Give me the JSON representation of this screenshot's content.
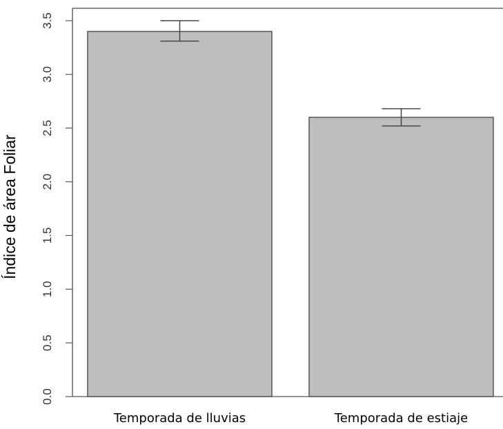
{
  "chart_data": {
    "type": "bar",
    "title": "",
    "xlabel": "",
    "ylabel": "Índice de área Foliar",
    "categories": [
      "Temporada de lluvias",
      "Temporada de estiaje"
    ],
    "values": [
      3.4,
      2.6
    ],
    "error_bars": [
      {
        "low": 3.31,
        "high": 3.5
      },
      {
        "low": 2.52,
        "high": 2.68
      }
    ],
    "ylim": [
      0,
      3.5
    ],
    "yticks": [
      "0.0",
      "0.5",
      "1.0",
      "1.5",
      "2.0",
      "2.5",
      "3.0",
      "3.5"
    ],
    "grid": false,
    "bar_color": "#bebebe",
    "bar_edge_color": "#555555"
  }
}
